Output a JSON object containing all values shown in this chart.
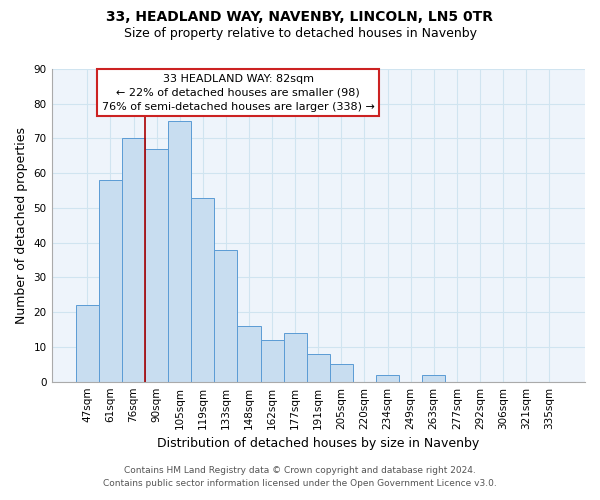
{
  "title": "33, HEADLAND WAY, NAVENBY, LINCOLN, LN5 0TR",
  "subtitle": "Size of property relative to detached houses in Navenby",
  "xlabel": "Distribution of detached houses by size in Navenby",
  "ylabel": "Number of detached properties",
  "bar_labels": [
    "47sqm",
    "61sqm",
    "76sqm",
    "90sqm",
    "105sqm",
    "119sqm",
    "133sqm",
    "148sqm",
    "162sqm",
    "177sqm",
    "191sqm",
    "205sqm",
    "220sqm",
    "234sqm",
    "249sqm",
    "263sqm",
    "277sqm",
    "292sqm",
    "306sqm",
    "321sqm",
    "335sqm"
  ],
  "bar_values": [
    22,
    58,
    70,
    67,
    75,
    53,
    38,
    16,
    12,
    14,
    8,
    5,
    0,
    2,
    0,
    2,
    0,
    0,
    0,
    0,
    0
  ],
  "bar_color": "#c8ddf0",
  "bar_edge_color": "#5b9bd5",
  "ylim": [
    0,
    90
  ],
  "yticks": [
    0,
    10,
    20,
    30,
    40,
    50,
    60,
    70,
    80,
    90
  ],
  "vline_color": "#aa0000",
  "annotation_text_line1": "33 HEADLAND WAY: 82sqm",
  "annotation_text_line2": "← 22% of detached houses are smaller (98)",
  "annotation_text_line3": "76% of semi-detached houses are larger (338) →",
  "footer_line1": "Contains HM Land Registry data © Crown copyright and database right 2024.",
  "footer_line2": "Contains public sector information licensed under the Open Government Licence v3.0.",
  "grid_color": "#d0e4f0",
  "background_color": "#eef4fb",
  "fig_background": "#ffffff",
  "title_fontsize": 10,
  "subtitle_fontsize": 9,
  "axis_label_fontsize": 9,
  "tick_fontsize": 7.5,
  "annotation_fontsize": 8,
  "footer_fontsize": 6.5
}
